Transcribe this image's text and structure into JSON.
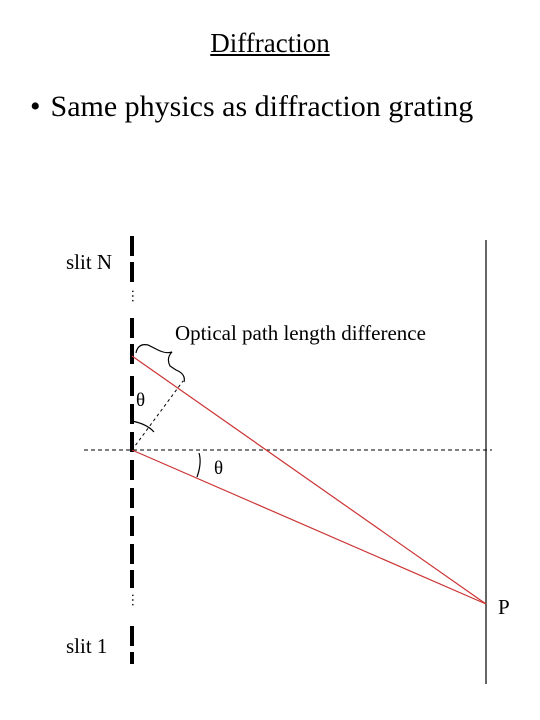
{
  "slide": {
    "title": "Diffraction",
    "bullet": "Same physics as diffraction grating"
  },
  "diagram": {
    "label_slit_top": "slit N",
    "label_slit_bottom": "slit 1",
    "label_path_difference": "Optical path length difference",
    "label_angle_left": "θ",
    "label_angle_right": "θ",
    "label_point": "P",
    "ellipsis": "…",
    "ray_color": "#cc3333",
    "line_color": "#000000"
  }
}
